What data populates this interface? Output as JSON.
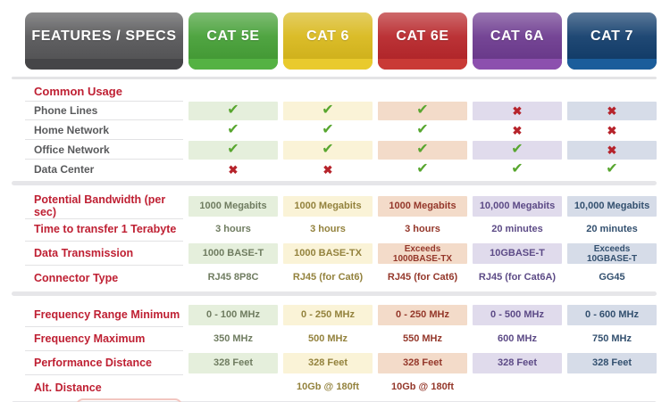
{
  "table": {
    "header_label": "FEATURES / SPECS",
    "columns": [
      {
        "id": "cat5e",
        "label": "CAT 5E",
        "tab": "#47A038",
        "tab_strip": "#55B243",
        "cell_bg": "#E5EFDC",
        "text": "#6F7C60"
      },
      {
        "id": "cat6",
        "label": "CAT 6",
        "tab": "#D9B91E",
        "tab_strip": "#E9CA2D",
        "cell_bg": "#FAF3D7",
        "text": "#93823D"
      },
      {
        "id": "cat6e",
        "label": "CAT 6E",
        "tab": "#B8282C",
        "tab_strip": "#C93A36",
        "cell_bg": "#F3DBC9",
        "text": "#94372A"
      },
      {
        "id": "cat6a",
        "label": "CAT 6A",
        "tab": "#6E3C90",
        "tab_strip": "#8C50AE",
        "cell_bg": "#E0DBEC",
        "text": "#5C4A86"
      },
      {
        "id": "cat7",
        "label": "CAT 7",
        "tab": "#143F6D",
        "tab_strip": "#1B5D9B",
        "cell_bg": "#D6DCE8",
        "text": "#33506F"
      }
    ],
    "sections": [
      {
        "kind": "usage",
        "title": "Common Usage",
        "rows": [
          {
            "label": "Phone Lines",
            "values": [
              "check",
              "check",
              "check",
              "cross",
              "cross"
            ]
          },
          {
            "label": "Home Network",
            "values": [
              "check",
              "check",
              "check",
              "cross",
              "cross"
            ]
          },
          {
            "label": "Office Network",
            "values": [
              "check",
              "check",
              "check",
              "check",
              "cross"
            ]
          },
          {
            "label": "Data Center",
            "values": [
              "cross",
              "cross",
              "check",
              "check",
              "check"
            ]
          }
        ]
      },
      {
        "kind": "spec",
        "rows": [
          {
            "label": "Potential Bandwidth (per sec)",
            "values": [
              "1000 Megabits",
              "1000 Megabits",
              "1000 Megabits",
              "10,000 Megabits",
              "10,000 Megabits"
            ]
          },
          {
            "label": "Time to transfer 1 Terabyte",
            "values": [
              "3 hours",
              "3 hours",
              "3 hours",
              "20 minutes",
              "20 minutes"
            ]
          },
          {
            "label": "Data Transmission",
            "values": [
              "1000 BASE-T",
              "1000 BASE-TX",
              "Exceeds\n1000BASE-TX",
              "10GBASE-T",
              "Exceeds\n10GBASE-T"
            ]
          },
          {
            "label": "Connector Type",
            "values": [
              "RJ45 8P8C",
              "RJ45 (for Cat6)",
              "RJ45 (for Cat6)",
              "RJ45 (for Cat6A)",
              "GG45"
            ]
          }
        ]
      },
      {
        "kind": "spec",
        "rows": [
          {
            "label": "Frequency Range Minimum",
            "values": [
              "0 - 100 MHz",
              "0 - 250 MHz",
              "0 - 250 MHz",
              "0 - 500 MHz",
              "0 - 600 MHz"
            ]
          },
          {
            "label": "Frequency Maximum",
            "values": [
              "350 MHz",
              "500 MHz",
              "550 MHz",
              "600 MHz",
              "750 MHz"
            ]
          },
          {
            "label": "Performance Distance",
            "values": [
              "328 Feet",
              "328 Feet",
              "328 Feet",
              "328 Feet",
              "328 Feet"
            ]
          },
          {
            "label": "Alt. Distance",
            "values": [
              "",
              "10Gb @ 180ft",
              "10Gb @ 180ft",
              "",
              ""
            ]
          }
        ]
      }
    ]
  },
  "glyphs": {
    "check": "✔",
    "cross": "✖"
  },
  "colors": {
    "page_bg": "#FFFFFF",
    "label_red": "#BF2033",
    "sublabel_gray": "#595A5C",
    "divider": "#E2E2E4",
    "separator_line": "#E4E4E6",
    "section_bar": "#E6E6E9",
    "check_green": "#58A62F",
    "cross_red": "#B6232B",
    "features_tab_bg": "#58585A",
    "features_tab_strip": "#454548",
    "tab_text": "#FFFFFF",
    "cutoff_outline": "#F2C6C0"
  }
}
